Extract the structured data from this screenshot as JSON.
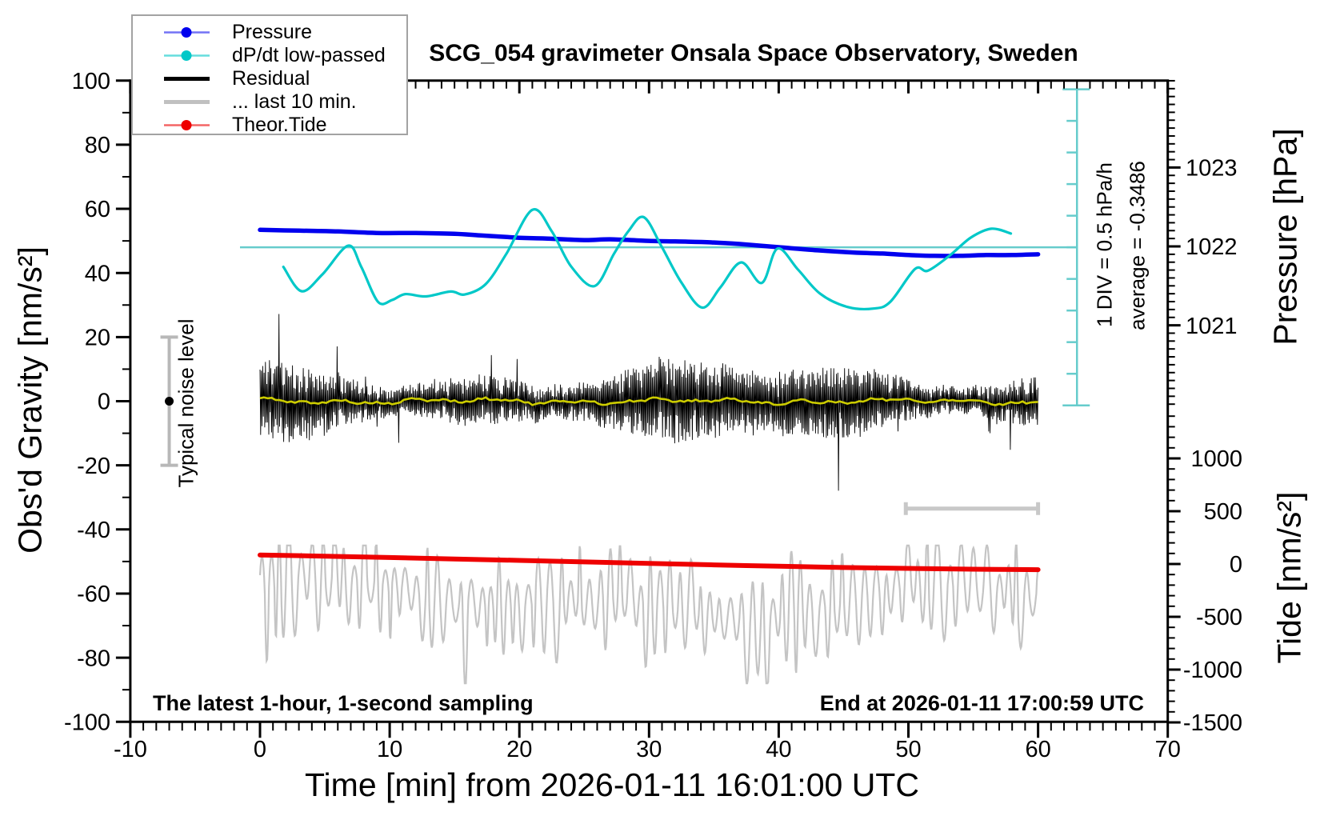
{
  "figure": {
    "title": "SCG_054 gravimeter Onsala Space Observatory, Sweden",
    "xlabel": "Time [min] from 2026-01-11 16:01:00 UTC",
    "ylabel_left": "Obs'd Gravity [nm/s²]",
    "ylabel_pressure": "Pressure [hPa]",
    "ylabel_tide": "Tide [nm/s²]",
    "note_left": "The latest 1-hour, 1-second sampling",
    "note_right": "End at 2026-01-11 17:00:59 UTC",
    "noise_label": "Typical noise level",
    "scale_div_label": "1 DIV = 0.5 hPa/h",
    "scale_avg_label": "average = -0.3486"
  },
  "legend": {
    "items": [
      {
        "label": "Pressure",
        "color": "#0000ee",
        "marker": true,
        "width": 2.5,
        "opacity": 0.55
      },
      {
        "label": "dP/dt low-passed",
        "color": "#00c8c8",
        "marker": true,
        "width": 2.5,
        "opacity": 0.6
      },
      {
        "label": "Residual",
        "color": "#000000",
        "marker": false,
        "width": 5,
        "opacity": 1
      },
      {
        "label": "... last 10 min.",
        "color": "#c0c0c0",
        "marker": false,
        "width": 5,
        "opacity": 1
      },
      {
        "label": "Theor.Tide",
        "color": "#ee0000",
        "marker": true,
        "width": 2.5,
        "opacity": 0.6
      }
    ]
  },
  "chart_data": {
    "type": "line",
    "title": "SCG_054 gravimeter Onsala Space Observatory, Sweden",
    "xlabel": "Time [min] from 2026-01-11 16:01:00 UTC",
    "x_axis": {
      "range": [
        -10,
        70
      ],
      "major_ticks": [
        -10,
        0,
        10,
        20,
        30,
        40,
        50,
        60,
        70
      ],
      "minor_step": 1
    },
    "gravity_axis": {
      "label": "Obs'd Gravity [nm/s²]",
      "range": [
        -100,
        100
      ],
      "major_ticks": [
        -100,
        -80,
        -60,
        -40,
        -20,
        0,
        20,
        40,
        60,
        80,
        100
      ],
      "minor_step": 10
    },
    "pressure_axis": {
      "label": "Pressure [hPa]",
      "major_ticks": [
        1021,
        1022,
        1023
      ],
      "minor_step": 0.1,
      "minor_range": [
        1020.0,
        1024.1
      ]
    },
    "tide_axis": {
      "label": "Tide [nm/s²]",
      "major_ticks": [
        -1500,
        -1000,
        -500,
        0,
        500,
        1000
      ],
      "minor_step": 100,
      "minor_range": [
        -1500,
        1400
      ]
    },
    "series": [
      {
        "name": "Pressure",
        "color": "#0000ee",
        "unit": "hPa",
        "axis": "pressure",
        "line_width": 5.5,
        "points": [
          [
            0,
            1022.21
          ],
          [
            3,
            1022.2
          ],
          [
            6,
            1022.19
          ],
          [
            9,
            1022.17
          ],
          [
            12,
            1022.17
          ],
          [
            15,
            1022.16
          ],
          [
            17,
            1022.14
          ],
          [
            20,
            1022.11
          ],
          [
            22,
            1022.1
          ],
          [
            25,
            1022.08
          ],
          [
            27,
            1022.09
          ],
          [
            30,
            1022.07
          ],
          [
            33,
            1022.06
          ],
          [
            35,
            1022.05
          ],
          [
            37,
            1022.03
          ],
          [
            40,
            1021.99
          ],
          [
            43,
            1021.95
          ],
          [
            46,
            1021.92
          ],
          [
            48,
            1021.91
          ],
          [
            50,
            1021.89
          ],
          [
            52,
            1021.88
          ],
          [
            54,
            1021.88
          ],
          [
            56,
            1021.89
          ],
          [
            58,
            1021.89
          ],
          [
            60,
            1021.9
          ]
        ]
      },
      {
        "name": "dP/dt low-passed",
        "color": "#00c8c8",
        "axis": "gravity",
        "line_width": 3.2,
        "scale": "1 DIV = 0.5 hPa/h",
        "average_hPa_per_h": -0.3486,
        "reference_value": 48,
        "points": [
          [
            1.8,
            41.9
          ],
          [
            3.2,
            34.3
          ],
          [
            4.8,
            39.5
          ],
          [
            6.8,
            48.5
          ],
          [
            7.8,
            42.0
          ],
          [
            9.1,
            31.0
          ],
          [
            10.2,
            31.6
          ],
          [
            11.2,
            33.4
          ],
          [
            12.8,
            32.7
          ],
          [
            14.7,
            34.2
          ],
          [
            15.8,
            33.3
          ],
          [
            17.4,
            36.5
          ],
          [
            19.0,
            46.0
          ],
          [
            21.0,
            59.7
          ],
          [
            22.5,
            53.0
          ],
          [
            24.0,
            42.0
          ],
          [
            25.8,
            35.9
          ],
          [
            27.3,
            46.0
          ],
          [
            28.4,
            53.0
          ],
          [
            29.6,
            57.4
          ],
          [
            31.0,
            48.0
          ],
          [
            32.5,
            37.0
          ],
          [
            34.1,
            29.2
          ],
          [
            35.5,
            35.5
          ],
          [
            37.1,
            43.3
          ],
          [
            38.7,
            36.9
          ],
          [
            39.9,
            47.6
          ],
          [
            41.5,
            41.0
          ],
          [
            43.2,
            33.5
          ],
          [
            45.3,
            29.4
          ],
          [
            47.3,
            28.9
          ],
          [
            48.6,
            31.0
          ],
          [
            50.5,
            41.2
          ],
          [
            51.5,
            40.7
          ],
          [
            53.2,
            45.5
          ],
          [
            54.8,
            51.0
          ],
          [
            56.4,
            53.8
          ],
          [
            57.9,
            52.3
          ]
        ]
      },
      {
        "name": "Residual",
        "color": "#000000",
        "axis": "gravity",
        "t_range": [
          0,
          60
        ],
        "mean": 0,
        "typical_amplitude": 10,
        "max_excursion": 30,
        "seed": 11,
        "line_width": 0.9
      },
      {
        "name": "Residual low-passed",
        "color": "#cccc00",
        "axis": "gravity",
        "t_range": [
          0,
          60
        ],
        "mean": 0,
        "amplitude": 1.3,
        "seed": 5,
        "line_width": 2.6
      },
      {
        "name": "... last 10 min.",
        "color": "#c4c4c4",
        "axis": "gravity",
        "t_range": [
          0,
          60
        ],
        "center": -62,
        "osc_amplitude_range": [
          4.5,
          18
        ],
        "deep_dips_to": -88,
        "seed": 23,
        "line_width": 2.2,
        "scale_bar": {
          "t_start": 49.8,
          "t_end": 60,
          "value": -33.5,
          "color": "#c8c8c8"
        }
      },
      {
        "name": "Theor.Tide",
        "color": "#ee0000",
        "unit": "nm/s2",
        "axis": "tide",
        "line_width": 6,
        "points": [
          [
            0,
            85
          ],
          [
            5,
            74
          ],
          [
            10,
            61
          ],
          [
            15,
            48
          ],
          [
            20,
            34
          ],
          [
            25,
            20
          ],
          [
            30,
            6
          ],
          [
            35,
            -8
          ],
          [
            40,
            -21
          ],
          [
            45,
            -33
          ],
          [
            50,
            -42
          ],
          [
            55,
            -49
          ],
          [
            60,
            -54
          ]
        ]
      }
    ],
    "noise_level_marker": {
      "t": -7,
      "value": 0,
      "error": 20,
      "label": "Typical noise level"
    },
    "dpdt_scale_bar": {
      "x_time": 63,
      "span_gravity": [
        97.3,
        -1.3
      ],
      "divisions": 10,
      "ref_division": 5,
      "div_label": "1 DIV = 0.5 hPa/h",
      "avg_label": "average = -0.3486",
      "color": "#66cccc"
    },
    "legend_position": "top-left",
    "grid": false
  }
}
